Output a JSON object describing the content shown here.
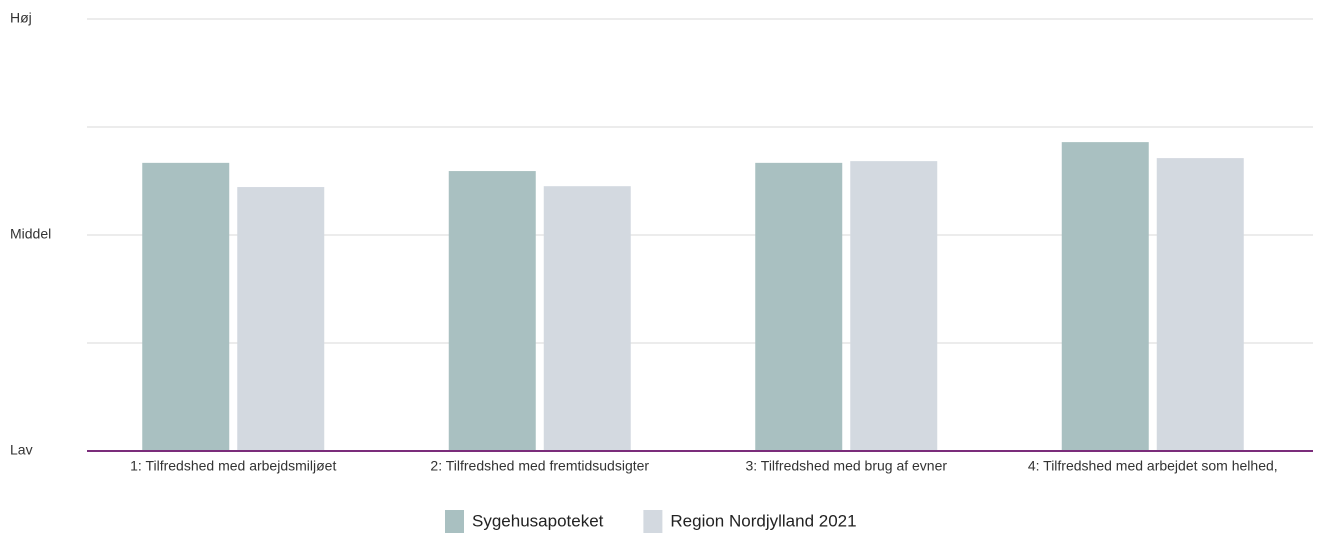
{
  "chart_data": {
    "type": "bar",
    "categories": [
      "1: Tilfredshed med arbejdsmiljøet",
      "2: Tilfredshed med fremtidsudsigter",
      "3: Tilfredshed med brug af evner",
      "4: Tilfredshed med arbejdet som helhed,"
    ],
    "series": [
      {
        "name": "Sygehusapoteket",
        "color": "#a9c0c1",
        "values": [
          66.7,
          64.8,
          66.7,
          71.5
        ]
      },
      {
        "name": "Region Nordjylland 2021",
        "color": "#d3d9e0",
        "values": [
          61.1,
          61.3,
          67.1,
          67.8
        ]
      }
    ],
    "ylim": [
      0,
      100
    ],
    "yticks": [
      {
        "value": 0,
        "label": "Lav"
      },
      {
        "value": 50,
        "label": "Middel"
      },
      {
        "value": 100,
        "label": "Høj"
      }
    ],
    "ygrid": [
      25,
      50,
      75,
      100
    ],
    "grid": true,
    "axis_color": "#7b2d7b",
    "legend": "bottom"
  }
}
